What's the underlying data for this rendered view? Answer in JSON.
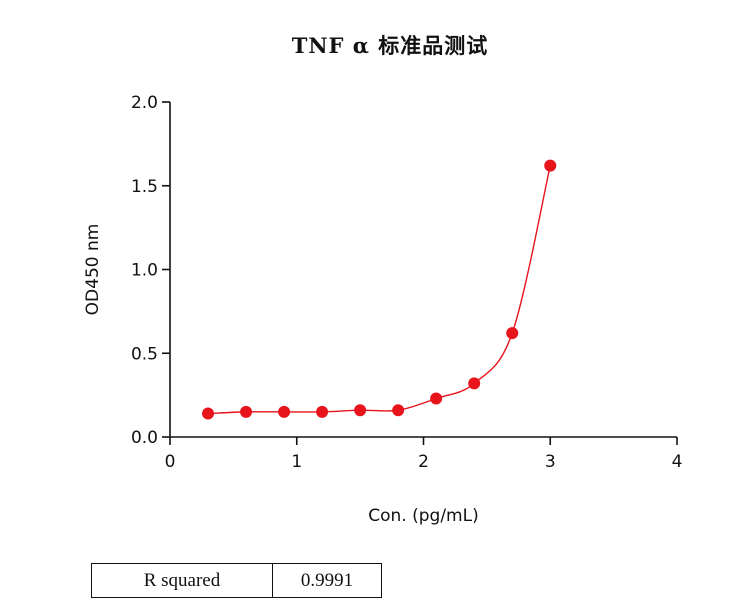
{
  "chart_data": {
    "type": "scatter",
    "title": "TNF α 标准品测试",
    "xlabel": "Con. (pg/mL)",
    "ylabel": "OD450 nm",
    "xlim": [
      0,
      4
    ],
    "ylim": [
      0,
      2.0
    ],
    "x_ticks": [
      "0",
      "1",
      "2",
      "3",
      "4"
    ],
    "y_ticks": [
      "0.0",
      "0.5",
      "1.0",
      "1.5",
      "2.0"
    ],
    "grid": false,
    "series": [
      {
        "x": [
          0.3,
          0.6,
          0.9,
          1.2,
          1.5,
          1.8,
          2.1,
          2.4,
          2.7,
          3.0
        ],
        "y": [
          0.14,
          0.15,
          0.15,
          0.15,
          0.16,
          0.16,
          0.23,
          0.32,
          0.62,
          1.62
        ],
        "fit_curve": true
      }
    ],
    "colors": {
      "points": "#e8141c",
      "curve": "#e8141c",
      "axis": "#111111"
    }
  },
  "stats": {
    "label": "R squared",
    "value": "0.9991"
  }
}
